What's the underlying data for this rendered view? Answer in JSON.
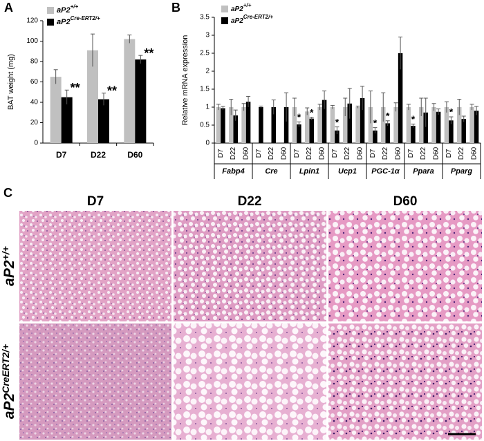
{
  "chart_data": [
    {
      "type": "bar",
      "label": "A",
      "ylabel": "BAT weight (mg)",
      "categories": [
        "D7",
        "D22",
        "D60"
      ],
      "ylim": [
        0,
        120
      ],
      "yticks": [
        0,
        20,
        40,
        60,
        80,
        100,
        120
      ],
      "series": [
        {
          "name": "aP2",
          "superscript": "+/+",
          "color": "#c0c0c0",
          "values": [
            65,
            91,
            102
          ],
          "errors": [
            7,
            16,
            4
          ]
        },
        {
          "name": "aP2",
          "superscript": "Cre-ERT2/+",
          "color": "#000000",
          "values": [
            45,
            43,
            82
          ],
          "errors": [
            7,
            6,
            4
          ],
          "annotations": [
            "**",
            "**",
            "**"
          ]
        }
      ]
    },
    {
      "type": "bar",
      "label": "B",
      "ylabel": "Relative mRNA expression",
      "categories": [
        "D7",
        "D22",
        "D60",
        "D7",
        "D22",
        "D60",
        "D7",
        "D22",
        "D60",
        "D7",
        "D22",
        "D60",
        "D7",
        "D22",
        "D60",
        "D7",
        "D22",
        "D60",
        "D7",
        "D22",
        "D60"
      ],
      "groups": [
        "Fabp4",
        "Cre",
        "Lpin1",
        "Ucp1",
        "PGC-1α",
        "Ppara",
        "Pparg"
      ],
      "ylim": [
        0,
        3.5
      ],
      "yticks": [
        0,
        0.5,
        1,
        1.5,
        2,
        2.5,
        3,
        3.5
      ],
      "series": [
        {
          "name": "aP2",
          "superscript": "+/+",
          "color": "#c0c0c0",
          "values": [
            1.0,
            1.0,
            1.0,
            null,
            null,
            null,
            1.0,
            0.88,
            1.0,
            1.0,
            1.0,
            1.0,
            1.0,
            1.0,
            1.0,
            1.0,
            1.0,
            1.0,
            1.0,
            1.0,
            1.0
          ],
          "errors": [
            0.08,
            0.22,
            0.1,
            null,
            null,
            null,
            0.25,
            0.1,
            0.08,
            0.05,
            0.25,
            0.03,
            0.45,
            0.4,
            0.12,
            0.08,
            0.25,
            0.1,
            0.15,
            0.22,
            0.08
          ]
        },
        {
          "name": "aP2",
          "superscript": "Cre-ERT2/+",
          "color": "#000000",
          "values": [
            0.97,
            0.77,
            1.15,
            1.0,
            1.0,
            1.0,
            0.52,
            0.68,
            1.2,
            0.35,
            1.1,
            1.25,
            0.35,
            0.55,
            2.5,
            0.48,
            0.85,
            0.87,
            0.63,
            0.67,
            0.9
          ],
          "errors": [
            0.05,
            0.15,
            0.15,
            0.03,
            0.2,
            0.4,
            0.07,
            0.04,
            0.25,
            0.1,
            0.42,
            0.33,
            0.08,
            0.07,
            0.45,
            0.05,
            0.4,
            0.08,
            0.1,
            0.08,
            0.12
          ],
          "annotations": [
            null,
            null,
            null,
            null,
            null,
            null,
            "*",
            "*",
            null,
            "*",
            null,
            null,
            "*",
            "*",
            null,
            "*",
            null,
            null,
            "*",
            null,
            null
          ]
        }
      ]
    }
  ],
  "panel_c": {
    "label": "C",
    "columns": [
      "D7",
      "D22",
      "D60"
    ],
    "rows": [
      {
        "name": "aP2",
        "superscript": "+/+"
      },
      {
        "name": "aP2",
        "superscript": "CreERT2/+"
      }
    ]
  }
}
